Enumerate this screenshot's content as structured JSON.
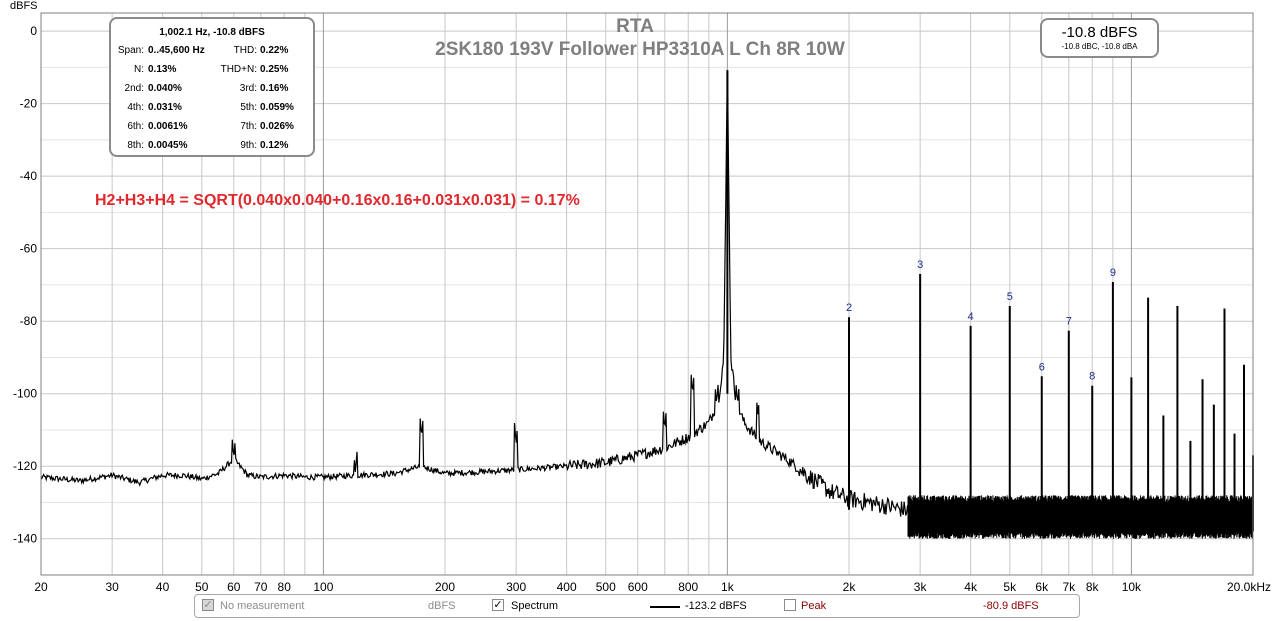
{
  "header": {
    "title": "RTA",
    "subtitle": "2SK180 193V Follower HP3310A L Ch 8R 10W"
  },
  "info_box": {
    "headline": "1,002.1 Hz, -10.8 dBFS",
    "rows": [
      {
        "l1": "Span:",
        "v1": "0..45,600 Hz",
        "l2": "THD:",
        "v2": "0.22%"
      },
      {
        "l1": "N:",
        "v1": "0.13%",
        "l2": "THD+N:",
        "v2": "0.25%"
      },
      {
        "l1": "2nd:",
        "v1": "0.040%",
        "l2": "3rd:",
        "v2": "0.16%"
      },
      {
        "l1": "4th:",
        "v1": "0.031%",
        "l2": "5th:",
        "v2": "0.059%"
      },
      {
        "l1": "6th:",
        "v1": "0.0061%",
        "l2": "7th:",
        "v2": "0.026%"
      },
      {
        "l1": "8th:",
        "v1": "0.0045%",
        "l2": "9th:",
        "v2": "0.12%"
      }
    ]
  },
  "level_box": {
    "main": "-10.8 dBFS",
    "sub": "-10.8 dBC, -10.8 dBA"
  },
  "annotation": "H2+H3+H4 = SQRT(0.040x0.040+0.16x0.16+0.031x0.031) = 0.17%",
  "legend": {
    "no_measurement_label": "No measurement",
    "no_measurement_unit": "dBFS",
    "spectrum_label": "Spectrum",
    "spectrum_checked": true,
    "spectrum_value": "-123.2 dBFS",
    "peak_label": "Peak",
    "peak_checked": false,
    "peak_value": "-80.9 dBFS"
  },
  "colors": {
    "background": "#ffffff",
    "grid_major": "#c8c8c8",
    "grid_minor": "#e4e4e4",
    "axis": "#000000",
    "trace": "#000000",
    "harmonic_label": "#1f2a8a",
    "annotation": "#e0282d",
    "title": "#7f7f7f",
    "peak_text": "#8b0000"
  },
  "chart_data": {
    "type": "line",
    "title": "RTA",
    "subtitle": "2SK180 193V Follower HP3310A L Ch 8R 10W",
    "xlabel": "",
    "ylabel": "dBFS",
    "xscale": "log",
    "xlim": [
      20,
      20000
    ],
    "ylim": [
      -150,
      5
    ],
    "yticks": [
      0,
      -20,
      -40,
      -60,
      -80,
      -100,
      -120,
      -140
    ],
    "xtick_labels": [
      {
        "v": 20,
        "t": "20"
      },
      {
        "v": 30,
        "t": "30"
      },
      {
        "v": 40,
        "t": "40"
      },
      {
        "v": 50,
        "t": "50"
      },
      {
        "v": 60,
        "t": "60"
      },
      {
        "v": 70,
        "t": "70"
      },
      {
        "v": 80,
        "t": "80"
      },
      {
        "v": 100,
        "t": "100"
      },
      {
        "v": 200,
        "t": "200"
      },
      {
        "v": 300,
        "t": "300"
      },
      {
        "v": 400,
        "t": "400"
      },
      {
        "v": 500,
        "t": "500"
      },
      {
        "v": 600,
        "t": "600"
      },
      {
        "v": 800,
        "t": "800"
      },
      {
        "v": 1000,
        "t": "1k"
      },
      {
        "v": 2000,
        "t": "2k"
      },
      {
        "v": 3000,
        "t": "3k"
      },
      {
        "v": 4000,
        "t": "4k"
      },
      {
        "v": 5000,
        "t": "5k"
      },
      {
        "v": 6000,
        "t": "6k"
      },
      {
        "v": 7000,
        "t": "7k"
      },
      {
        "v": 8000,
        "t": "8k"
      },
      {
        "v": 10000,
        "t": "10k"
      },
      {
        "v": 20000,
        "t": "20.0kHz"
      }
    ],
    "grid": true,
    "series": [
      {
        "name": "Spectrum",
        "noise_floor": [
          [
            20,
            -123
          ],
          [
            25,
            -124
          ],
          [
            30,
            -122.5
          ],
          [
            35,
            -124.5
          ],
          [
            40,
            -122.5
          ],
          [
            45,
            -122.5
          ],
          [
            50,
            -123.5
          ],
          [
            55,
            -122
          ],
          [
            60,
            -118
          ],
          [
            65,
            -122.5
          ],
          [
            70,
            -123
          ],
          [
            80,
            -122.5
          ],
          [
            90,
            -123
          ],
          [
            100,
            -123
          ],
          [
            120,
            -122.5
          ],
          [
            150,
            -122
          ],
          [
            175,
            -120
          ],
          [
            200,
            -122
          ],
          [
            250,
            -121.5
          ],
          [
            300,
            -121
          ],
          [
            400,
            -120
          ],
          [
            500,
            -119
          ],
          [
            600,
            -117
          ],
          [
            700,
            -115
          ],
          [
            800,
            -112
          ],
          [
            900,
            -108
          ],
          [
            950,
            -102
          ],
          [
            980,
            -90
          ],
          [
            1000,
            -10.8
          ],
          [
            1020,
            -90
          ],
          [
            1050,
            -102
          ],
          [
            1100,
            -108
          ],
          [
            1200,
            -113
          ],
          [
            1400,
            -118
          ],
          [
            1600,
            -123
          ],
          [
            1800,
            -127
          ],
          [
            2000,
            -129
          ],
          [
            2500,
            -131
          ],
          [
            3000,
            -133
          ],
          [
            4000,
            -134
          ],
          [
            6000,
            -134.5
          ],
          [
            10000,
            -135
          ],
          [
            20000,
            -135
          ]
        ],
        "spurs": [
          [
            60,
            -118
          ],
          [
            120,
            -122
          ],
          [
            175,
            -112
          ],
          [
            300,
            -114
          ],
          [
            700,
            -110
          ],
          [
            820,
            -100
          ],
          [
            940,
            -103
          ],
          [
            1060,
            -103
          ],
          [
            1190,
            -106
          ]
        ]
      }
    ],
    "harmonics": [
      {
        "n": "2",
        "freq": 2000,
        "level": -78.9
      },
      {
        "n": "3",
        "freq": 3000,
        "level": -67
      },
      {
        "n": "4",
        "freq": 4000,
        "level": -81.3
      },
      {
        "n": "5",
        "freq": 5000,
        "level": -75.8
      },
      {
        "n": "6",
        "freq": 6000,
        "level": -95.2
      },
      {
        "n": "7",
        "freq": 7000,
        "level": -82.6
      },
      {
        "n": "8",
        "freq": 8000,
        "level": -97.8
      },
      {
        "n": "9",
        "freq": 9000,
        "level": -69.2
      },
      {
        "n": "",
        "freq": 10000,
        "level": -95.5
      },
      {
        "n": "",
        "freq": 11000,
        "level": -73.5
      },
      {
        "n": "",
        "freq": 12000,
        "level": -106
      },
      {
        "n": "",
        "freq": 13000,
        "level": -75.8
      },
      {
        "n": "",
        "freq": 14000,
        "level": -113
      },
      {
        "n": "",
        "freq": 15000,
        "level": -96
      },
      {
        "n": "",
        "freq": 16000,
        "level": -103
      },
      {
        "n": "",
        "freq": 17000,
        "level": -76.5
      },
      {
        "n": "",
        "freq": 18000,
        "level": -111
      },
      {
        "n": "",
        "freq": 19000,
        "level": -92
      },
      {
        "n": "",
        "freq": 20000,
        "level": -117
      }
    ]
  }
}
